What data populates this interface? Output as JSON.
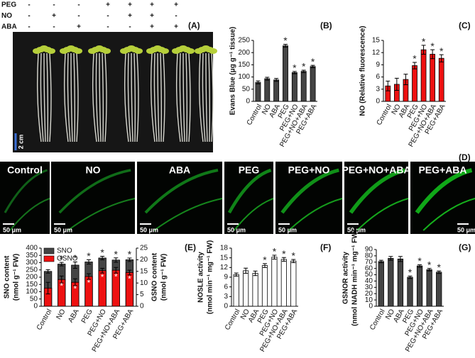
{
  "treatments": {
    "rows": [
      {
        "label": "PEG",
        "signs": [
          "-",
          "-",
          "-",
          "+",
          "+",
          "+",
          "+"
        ]
      },
      {
        "label": "NO",
        "signs": [
          "-",
          "+",
          "-",
          "-",
          "+",
          "+",
          "-"
        ]
      },
      {
        "label": "ABA",
        "signs": [
          "-",
          "-",
          "+",
          "-",
          "-",
          "+",
          "+"
        ]
      }
    ]
  },
  "photo": {
    "panel": "(A)",
    "scale_bar": "2 cm"
  },
  "microscopy": {
    "panel": "(D)",
    "images": [
      {
        "label": "Control",
        "scale_bar": "50 μm"
      },
      {
        "label": "NO",
        "scale_bar": "50 μm"
      },
      {
        "label": "ABA",
        "scale_bar": "50 μm"
      },
      {
        "label": "PEG",
        "scale_bar": "50 μm"
      },
      {
        "label": "PEG+NO",
        "scale_bar": "50 μm"
      },
      {
        "label": "PEG+NO+ABA",
        "scale_bar": "50 μm"
      },
      {
        "label": "PEG+ABA",
        "scale_bar": "50 μm"
      }
    ]
  },
  "chart_data": [
    {
      "type": "bar",
      "panel": "(B)",
      "ylabel": [
        "Evans Blue (μg g⁻¹ tissue)"
      ],
      "categories": [
        "Control",
        "NO",
        "ABA",
        "PEG",
        "PEG+NO",
        "PEG+NO+ABA",
        "PEG+ABA"
      ],
      "values": [
        78,
        93,
        88,
        228,
        118,
        123,
        143
      ],
      "errors": [
        6,
        6,
        6,
        6,
        5,
        5,
        5
      ],
      "significant": [
        false,
        false,
        false,
        true,
        true,
        true,
        true
      ],
      "marker": "*",
      "color": "#444444",
      "ylim": [
        0,
        250
      ],
      "yticks": [
        0,
        50,
        100,
        150,
        200,
        250
      ]
    },
    {
      "type": "bar",
      "panel": "(C)",
      "ylabel": [
        "NO (Relative fluorescence)"
      ],
      "categories": [
        "Control",
        "NO",
        "ABA",
        "PEG",
        "PEG+NO",
        "PEG+NO+ABA",
        "PEG+ABA"
      ],
      "values": [
        3.8,
        4.2,
        5.4,
        8.8,
        12.7,
        11.6,
        10.6
      ],
      "errors": [
        1.2,
        1.5,
        1.3,
        0.8,
        1.1,
        1.1,
        0.9
      ],
      "significant": [
        false,
        false,
        false,
        true,
        true,
        true,
        true
      ],
      "marker": "*",
      "color": "#ee1111",
      "ylim": [
        0,
        15
      ],
      "yticks": [
        0,
        3,
        6,
        9,
        12,
        15
      ]
    },
    {
      "type": "overlap_bar",
      "panel": "(E)",
      "ylabel": [
        "SNO content",
        "(nmol g⁻¹ FW)"
      ],
      "y2label": [
        "GSNO content",
        "(nmol g⁻¹ FW)"
      ],
      "categories": [
        "Control",
        "NO",
        "ABA",
        "PEG",
        "PEG+NO",
        "PEG+NO+ABA",
        "PEG+ABA"
      ],
      "series": [
        {
          "name": "SNO",
          "color": "#444444",
          "values": [
            240,
            290,
            283,
            305,
            332,
            318,
            320
          ],
          "errors": [
            12,
            12,
            22,
            15,
            12,
            15,
            12
          ],
          "significant": [
            false,
            true,
            true,
            true,
            true,
            true,
            true
          ]
        },
        {
          "name": "GSNO",
          "color": "#ee1111",
          "axis": "y2",
          "values": [
            7.8,
            11.5,
            10.3,
            12.8,
            15.3,
            15.5,
            14.5
          ],
          "errors": [
            2.5,
            1.5,
            1.5,
            1.2,
            1.0,
            1.2,
            1.0
          ],
          "significant": [
            false,
            true,
            true,
            true,
            true,
            true,
            true
          ]
        }
      ],
      "marker": "*",
      "ylim": [
        0,
        400
      ],
      "yticks": [
        0,
        50,
        100,
        150,
        200,
        250,
        300,
        350,
        400
      ],
      "y2lim": [
        0,
        25
      ],
      "y2ticks": [
        0,
        5,
        10,
        15,
        20,
        25
      ],
      "legend": "top-left"
    },
    {
      "type": "bar",
      "panel": "(F)",
      "ylabel": [
        "NOSLE activity",
        "(nmol min⁻¹ mg⁻¹ FW)"
      ],
      "categories": [
        "Control",
        "NO",
        "ABA",
        "PEG",
        "PEG+NO",
        "PEG+NO+ABA",
        "PEG+ABA"
      ],
      "values": [
        9.8,
        11,
        10.2,
        12.6,
        15.2,
        14.5,
        14.0
      ],
      "errors": [
        0.5,
        0.8,
        0.7,
        0.6,
        0.6,
        0.6,
        0.5
      ],
      "significant": [
        false,
        false,
        false,
        true,
        true,
        true,
        true
      ],
      "marker": "*",
      "color": "#ffffff",
      "ylim": [
        0,
        18
      ],
      "yticks": [
        0,
        3,
        6,
        9,
        12,
        15,
        18
      ]
    },
    {
      "type": "bar",
      "panel": "(G)",
      "ylabel": [
        "GSNOR activity",
        "(nmol NADH min⁻¹ mg⁻¹ FW)"
      ],
      "categories": [
        "Control",
        "NO",
        "ABA",
        "PEG",
        "PEG+NO",
        "PEG+NO+ABA",
        "PEG+ABA"
      ],
      "values": [
        71,
        76,
        75,
        46,
        64,
        58,
        54
      ],
      "errors": [
        2,
        3,
        4,
        2,
        2,
        2,
        2
      ],
      "significant": [
        false,
        false,
        false,
        true,
        true,
        true,
        true
      ],
      "marker": "*",
      "color": "#444444",
      "ylim": [
        0,
        90
      ],
      "yticks": [
        0,
        10,
        20,
        30,
        40,
        50,
        60,
        70,
        80,
        90
      ]
    }
  ]
}
